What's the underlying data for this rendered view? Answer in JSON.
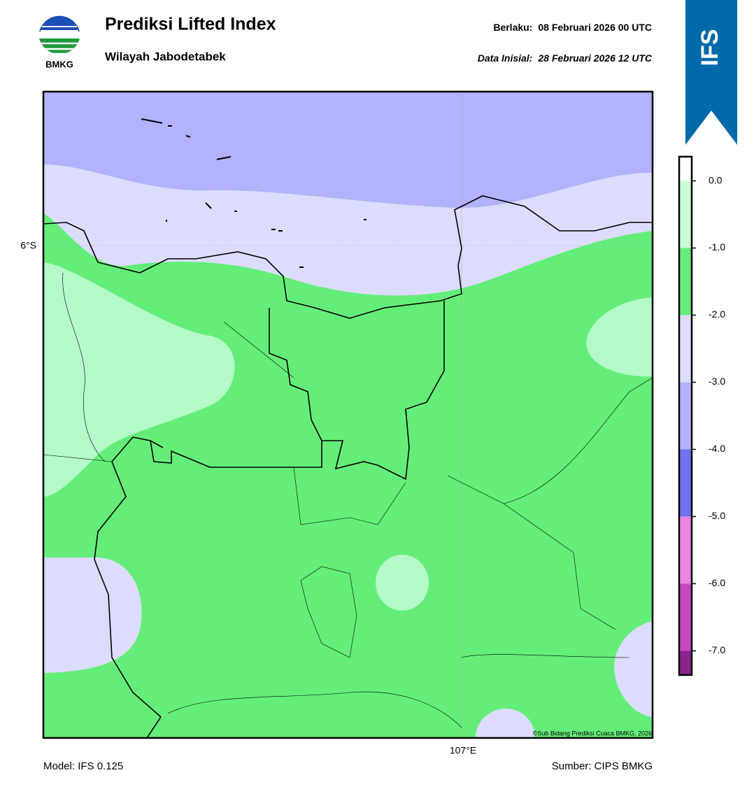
{
  "header": {
    "title": "Prediksi Lifted Index",
    "subtitle": "Wilayah Jabodetabek",
    "valid_label": "Berlaku:",
    "valid_date": "08 Februari 2026 00 UTC",
    "init_label": "Data Inisial:",
    "init_date": "28 Februari 2026 12 UTC"
  },
  "logo": {
    "text": "BMKG"
  },
  "badge": "IFS",
  "map": {
    "lat_label": "6°S",
    "lon_label": "107°E",
    "credit": "©Sub Bidang Prediksi Cuaca BMKG, 2026"
  },
  "colorbar": {
    "lim": [
      -7.36,
      0.36
    ],
    "ticks": [
      {
        "value": 0,
        "label": "0.0"
      },
      {
        "value": -1,
        "label": "-1.0"
      },
      {
        "value": -2,
        "label": "-2.0"
      },
      {
        "value": -3,
        "label": "-3.0"
      },
      {
        "value": -4,
        "label": "-4.0"
      },
      {
        "value": -5,
        "label": "-5.0"
      },
      {
        "value": -6,
        "label": "-6.0"
      },
      {
        "value": -7,
        "label": "-7.0"
      }
    ],
    "colors": [
      "#ffffff",
      "#ccfdd9",
      "#64ee79",
      "#dcdcfe",
      "#b2b2fe",
      "#7272f0",
      "#ec84e4",
      "#c846c0",
      "#8a248a"
    ]
  },
  "footer": {
    "model": "Model: IFS 0.125",
    "source": "Sumber: CIPS BMKG"
  }
}
